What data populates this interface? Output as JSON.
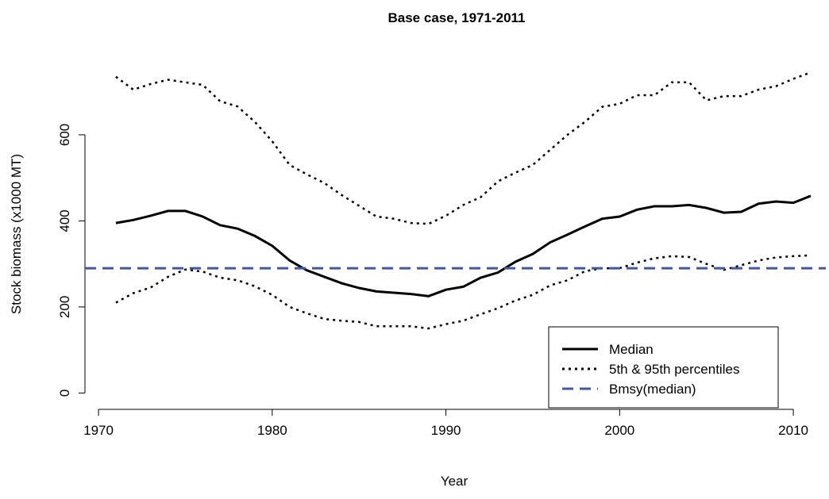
{
  "chart_data": {
    "type": "line",
    "title": "Base case, 1971-2011",
    "xlabel": "Year",
    "ylabel": "Stock biomass (x1000 MT)",
    "x": [
      1971,
      1972,
      1973,
      1974,
      1975,
      1976,
      1977,
      1978,
      1979,
      1980,
      1981,
      1982,
      1983,
      1984,
      1985,
      1986,
      1987,
      1988,
      1989,
      1990,
      1991,
      1992,
      1993,
      1994,
      1995,
      1996,
      1997,
      1998,
      1999,
      2000,
      2001,
      2002,
      2003,
      2004,
      2005,
      2006,
      2007,
      2008,
      2009,
      2010,
      2011
    ],
    "series": [
      {
        "name": "Median",
        "color": "#000000",
        "dash": "solid",
        "values": [
          395,
          402,
          412,
          423,
          423,
          410,
          390,
          382,
          365,
          342,
          308,
          285,
          270,
          255,
          244,
          236,
          233,
          230,
          225,
          240,
          247,
          268,
          280,
          305,
          323,
          350,
          368,
          387,
          405,
          410,
          426,
          434,
          434,
          437,
          430,
          419,
          421,
          440,
          445,
          442,
          458
        ]
      },
      {
        "name": "5th & 95th percentiles",
        "color": "#000000",
        "dash": "dotted",
        "upper": [
          735,
          705,
          718,
          728,
          722,
          716,
          678,
          666,
          630,
          585,
          530,
          508,
          488,
          460,
          435,
          410,
          405,
          395,
          393,
          412,
          437,
          455,
          492,
          512,
          530,
          565,
          600,
          630,
          665,
          672,
          692,
          692,
          722,
          722,
          680,
          690,
          690,
          705,
          713,
          730,
          745
        ],
        "lower": [
          210,
          232,
          245,
          270,
          287,
          282,
          268,
          262,
          248,
          228,
          200,
          185,
          172,
          168,
          165,
          155,
          155,
          155,
          150,
          160,
          168,
          183,
          197,
          215,
          228,
          250,
          262,
          283,
          290,
          290,
          303,
          313,
          318,
          316,
          300,
          286,
          297,
          308,
          315,
          318,
          320
        ]
      },
      {
        "name": "Bmsy(median)",
        "color": "#3f58a8",
        "dash": "dashed",
        "y": 290
      }
    ],
    "xlim": [
      1969.22,
      2011.87
    ],
    "ylim": [
      -38,
      775
    ],
    "xticks": [
      1970,
      1980,
      1990,
      2000,
      2010
    ],
    "yticks": [
      0,
      200,
      400,
      600
    ],
    "legend": "bottom-right"
  }
}
